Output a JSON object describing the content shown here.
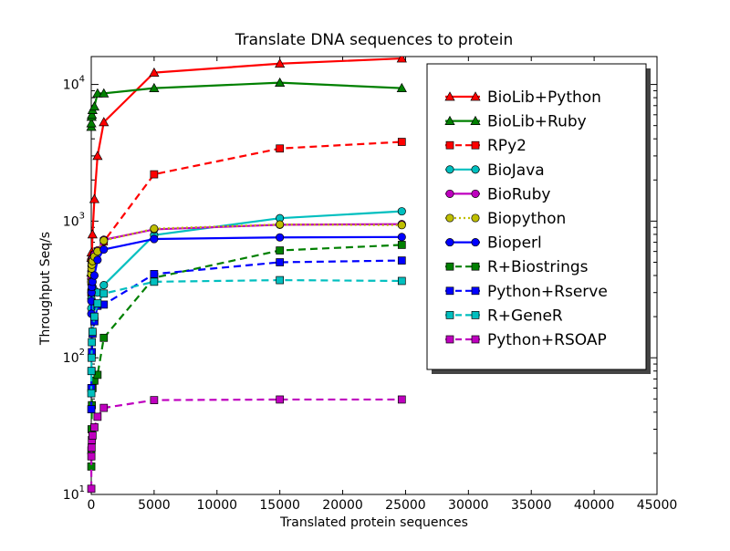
{
  "chart_data": {
    "type": "line",
    "title": "Translate DNA sequences to protein",
    "xlabel": "Translated protein sequences",
    "ylabel": "Throughput Seq/s",
    "xlim": [
      0,
      45000
    ],
    "ylim": [
      10,
      16000
    ],
    "yscale": "log",
    "grid": false,
    "legend_position": "top-right",
    "x_ticks": [
      "0",
      "5000",
      "10000",
      "15000",
      "20000",
      "25000",
      "30000",
      "35000",
      "40000",
      "45000"
    ],
    "y_ticks": [
      {
        "base": "10",
        "exp": "1",
        "value": 10
      },
      {
        "base": "10",
        "exp": "2",
        "value": 100
      },
      {
        "base": "10",
        "exp": "3",
        "value": 1000
      },
      {
        "base": "10",
        "exp": "4",
        "value": 10000
      }
    ],
    "series": [
      {
        "name": "BioLib+Python",
        "color": "#ff0000",
        "dash": "solid",
        "marker": "triangle",
        "points": [
          [
            5,
            420
          ],
          [
            10,
            540
          ],
          [
            25,
            590
          ],
          [
            50,
            560
          ],
          [
            100,
            800
          ],
          [
            250,
            1450
          ],
          [
            500,
            3000
          ],
          [
            1000,
            5300
          ],
          [
            5000,
            12200
          ],
          [
            15000,
            14200
          ],
          [
            24700,
            15500
          ]
        ]
      },
      {
        "name": "BioLib+Ruby",
        "color": "#008000",
        "dash": "solid",
        "marker": "triangle",
        "points": [
          [
            5,
            4900
          ],
          [
            10,
            5200
          ],
          [
            25,
            5800
          ],
          [
            50,
            6000
          ],
          [
            100,
            6500
          ],
          [
            250,
            6900
          ],
          [
            500,
            8600
          ],
          [
            1000,
            8600
          ],
          [
            5000,
            9400
          ],
          [
            15000,
            10300
          ],
          [
            24700,
            9400
          ]
        ]
      },
      {
        "name": "RPy2",
        "color": "#ff0000",
        "dash": "dashed",
        "marker": "square",
        "points": [
          [
            5,
            300
          ],
          [
            10,
            360
          ],
          [
            25,
            420
          ],
          [
            50,
            480
          ],
          [
            100,
            520
          ],
          [
            250,
            560
          ],
          [
            500,
            600
          ],
          [
            1000,
            710
          ],
          [
            5000,
            2200
          ],
          [
            15000,
            3400
          ],
          [
            24700,
            3800
          ]
        ]
      },
      {
        "name": "BioJava",
        "color": "#00bfbf",
        "dash": "solid",
        "marker": "circle",
        "points": [
          [
            5,
            230
          ],
          [
            10,
            270
          ],
          [
            25,
            300
          ],
          [
            50,
            320
          ],
          [
            100,
            330
          ],
          [
            250,
            310
          ],
          [
            500,
            300
          ],
          [
            1000,
            340
          ],
          [
            5000,
            790
          ],
          [
            15000,
            1050
          ],
          [
            24700,
            1180
          ]
        ]
      },
      {
        "name": "BioRuby",
        "color": "#bf00bf",
        "dash": "solid",
        "marker": "circle",
        "points": [
          [
            5,
            380
          ],
          [
            10,
            430
          ],
          [
            25,
            470
          ],
          [
            50,
            500
          ],
          [
            100,
            530
          ],
          [
            250,
            570
          ],
          [
            500,
            610
          ],
          [
            1000,
            730
          ],
          [
            5000,
            870
          ],
          [
            15000,
            940
          ],
          [
            24700,
            950
          ]
        ]
      },
      {
        "name": "Biopython",
        "color": "#bfbf00",
        "dash": "dotted",
        "marker": "circle",
        "points": [
          [
            5,
            360
          ],
          [
            10,
            410
          ],
          [
            25,
            450
          ],
          [
            50,
            480
          ],
          [
            100,
            510
          ],
          [
            250,
            550
          ],
          [
            500,
            600
          ],
          [
            1000,
            720
          ],
          [
            5000,
            880
          ],
          [
            15000,
            945
          ],
          [
            24700,
            935
          ]
        ]
      },
      {
        "name": "Bioperl",
        "color": "#0000ff",
        "dash": "solid",
        "marker": "circle",
        "points": [
          [
            5,
            210
          ],
          [
            10,
            260
          ],
          [
            25,
            300
          ],
          [
            50,
            330
          ],
          [
            100,
            360
          ],
          [
            250,
            400
          ],
          [
            500,
            520
          ],
          [
            1000,
            620
          ],
          [
            5000,
            740
          ],
          [
            15000,
            760
          ],
          [
            24700,
            765
          ]
        ]
      },
      {
        "name": "R+Biostrings",
        "color": "#008000",
        "dash": "dashed",
        "marker": "square",
        "points": [
          [
            5,
            16
          ],
          [
            10,
            21
          ],
          [
            25,
            30
          ],
          [
            50,
            45
          ],
          [
            100,
            60
          ],
          [
            250,
            68
          ],
          [
            500,
            75
          ],
          [
            1000,
            140
          ],
          [
            5000,
            385
          ],
          [
            15000,
            610
          ],
          [
            24700,
            670
          ]
        ]
      },
      {
        "name": "Python+Rserve",
        "color": "#0000ff",
        "dash": "dashed",
        "marker": "square",
        "points": [
          [
            5,
            42
          ],
          [
            10,
            60
          ],
          [
            25,
            80
          ],
          [
            50,
            110
          ],
          [
            100,
            150
          ],
          [
            250,
            185
          ],
          [
            500,
            240
          ],
          [
            1000,
            245
          ],
          [
            5000,
            410
          ],
          [
            15000,
            500
          ],
          [
            24700,
            515
          ]
        ]
      },
      {
        "name": "R+GeneR",
        "color": "#00bfbf",
        "dash": "dashed",
        "marker": "square",
        "points": [
          [
            5,
            55
          ],
          [
            10,
            80
          ],
          [
            25,
            100
          ],
          [
            50,
            130
          ],
          [
            100,
            155
          ],
          [
            250,
            200
          ],
          [
            500,
            250
          ],
          [
            1000,
            295
          ],
          [
            5000,
            360
          ],
          [
            15000,
            370
          ],
          [
            24700,
            365
          ]
        ]
      },
      {
        "name": "Python+RSOAP",
        "color": "#bf00bf",
        "dash": "dashed",
        "marker": "square",
        "points": [
          [
            5,
            11
          ],
          [
            10,
            19
          ],
          [
            25,
            22
          ],
          [
            50,
            25
          ],
          [
            100,
            27
          ],
          [
            250,
            31
          ],
          [
            500,
            37
          ],
          [
            1000,
            43
          ],
          [
            5000,
            49
          ],
          [
            15000,
            49.5
          ],
          [
            24700,
            49.5
          ]
        ]
      }
    ]
  }
}
